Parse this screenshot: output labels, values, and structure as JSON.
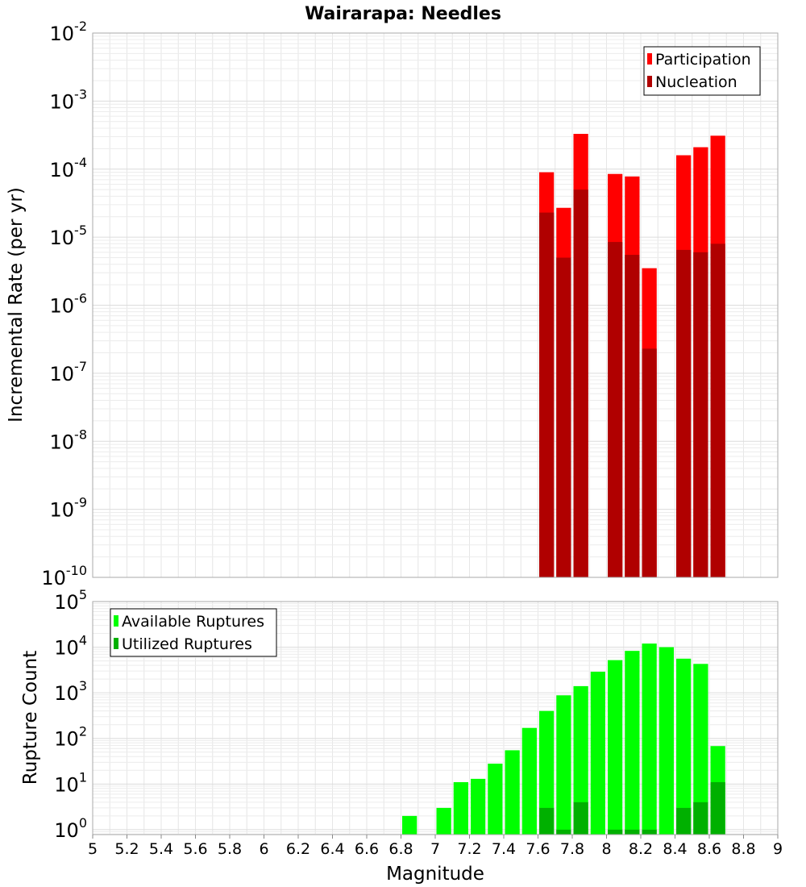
{
  "title": "Wairarapa: Needles",
  "xlabel": "Magnitude",
  "chart_data": [
    {
      "type": "bar",
      "panel": "top",
      "ylabel": "Incremental Rate (per yr)",
      "yscale": "log",
      "ylim": [
        1e-10,
        0.01
      ],
      "xlim": [
        5,
        9
      ],
      "bin_width": 0.1,
      "grid": true,
      "legend_position": "top-right",
      "y_ticks": [
        {
          "exp": "-10"
        },
        {
          "exp": "-9"
        },
        {
          "exp": "-8"
        },
        {
          "exp": "-7"
        },
        {
          "exp": "-6"
        },
        {
          "exp": "-5"
        },
        {
          "exp": "-4"
        },
        {
          "exp": "-3"
        },
        {
          "exp": "-2"
        }
      ],
      "series": [
        {
          "name": "Participation",
          "color": "#ff0000",
          "x": [
            7.65,
            7.75,
            7.85,
            8.05,
            8.15,
            8.25,
            8.45,
            8.55,
            8.65
          ],
          "values": [
            9e-05,
            2.7e-05,
            0.00033,
            8.5e-05,
            7.8e-05,
            3.5e-06,
            0.00016,
            0.00021,
            0.00031
          ]
        },
        {
          "name": "Nucleation",
          "color": "#b00000",
          "x": [
            7.65,
            7.75,
            7.85,
            8.05,
            8.15,
            8.25,
            8.45,
            8.55,
            8.65
          ],
          "values": [
            2.3e-05,
            5e-06,
            5e-05,
            8.5e-06,
            5.5e-06,
            2.3e-07,
            6.5e-06,
            6e-06,
            8e-06
          ]
        }
      ]
    },
    {
      "type": "bar",
      "panel": "bottom",
      "ylabel": "Rupture Count",
      "yscale": "log",
      "ylim": [
        0.78,
        100000
      ],
      "xlim": [
        5,
        9
      ],
      "bin_width": 0.1,
      "grid": true,
      "legend_position": "top-left",
      "y_ticks": [
        {
          "exp": "0"
        },
        {
          "exp": "1"
        },
        {
          "exp": "2"
        },
        {
          "exp": "3"
        },
        {
          "exp": "4"
        },
        {
          "exp": "5"
        }
      ],
      "series": [
        {
          "name": "Available Ruptures",
          "color": "#00ff00",
          "x": [
            6.85,
            7.05,
            7.15,
            7.25,
            7.35,
            7.45,
            7.55,
            7.65,
            7.75,
            7.85,
            7.95,
            8.05,
            8.15,
            8.25,
            8.35,
            8.45,
            8.55,
            8.65
          ],
          "values": [
            2,
            3,
            11,
            13,
            28,
            55,
            170,
            400,
            880,
            1400,
            2900,
            5200,
            8300,
            12000,
            10000,
            5600,
            4300,
            68
          ]
        },
        {
          "name": "Utilized Ruptures",
          "color": "#00b000",
          "x": [
            7.65,
            7.75,
            7.85,
            8.05,
            8.15,
            8.25,
            8.45,
            8.55,
            8.65
          ],
          "values": [
            3,
            1,
            4,
            1,
            1,
            1,
            3,
            4,
            11
          ]
        }
      ]
    }
  ],
  "x_ticks": [
    "5",
    "5.2",
    "5.4",
    "5.6",
    "5.8",
    "6",
    "6.2",
    "6.4",
    "6.6",
    "6.8",
    "7",
    "7.2",
    "7.4",
    "7.6",
    "7.8",
    "8",
    "8.2",
    "8.4",
    "8.6",
    "8.8",
    "9"
  ]
}
